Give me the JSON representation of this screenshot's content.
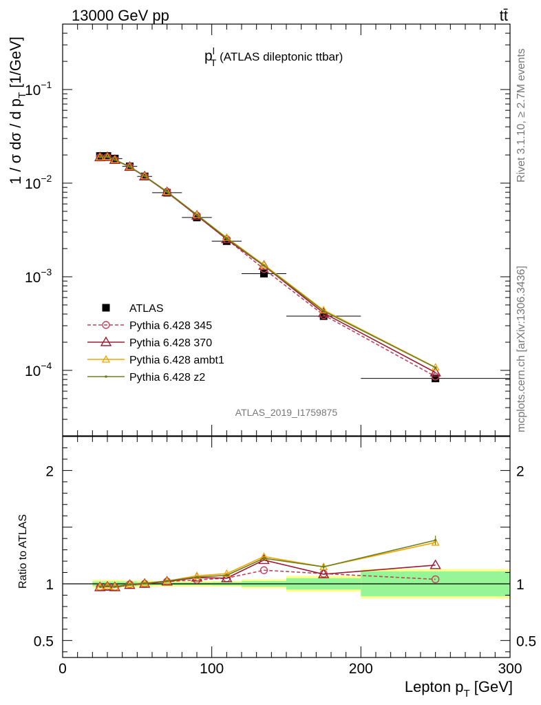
{
  "header": {
    "energy_label": "13000 GeV pp",
    "process_label": "tt̄"
  },
  "side_labels": {
    "rivet": "Rivet 3.1.10, ≥ 2.7M events",
    "mcplots": "mcplots.cern.ch [arXiv:1306.3436]"
  },
  "chart_data": [
    {
      "type": "line",
      "title": "p_T^l (ATLAS dileptonic ttbar)",
      "title_parts": {
        "main": "p",
        "sup": "l",
        "sub": "T",
        "rest": " (ATLAS dileptonic ttbar)"
      },
      "ylabel": "1 / σ  dσ / d p_T [1/GeV]",
      "ylabel_parts": {
        "pre": "1 / σ  dσ / d p",
        "sub": "T",
        "post": " [1/GeV]"
      },
      "analysis_id": "ATLAS_2019_I1759875",
      "yscale": "log",
      "xlim": [
        0,
        300
      ],
      "ylim": [
        2e-05,
        0.5
      ],
      "y_ticks": [
        {
          "value": 0.0001,
          "base": "10",
          "exp": "−4"
        },
        {
          "value": 0.001,
          "base": "10",
          "exp": "−3"
        },
        {
          "value": 0.01,
          "base": "10",
          "exp": "−2"
        },
        {
          "value": 0.1,
          "base": "10",
          "exp": "−1"
        }
      ],
      "legend_position": "lower-left",
      "series": [
        {
          "name": "ATLAS",
          "color": "#000000",
          "marker": "square",
          "x": [
            25,
            30,
            35,
            45,
            55,
            70,
            90,
            110,
            135,
            175,
            250
          ],
          "y": [
            0.0195,
            0.0195,
            0.0183,
            0.0151,
            0.0118,
            0.0079,
            0.0043,
            0.0024,
            0.00108,
            0.00038,
            8.2e-05
          ],
          "x_err": [
            2.5,
            2.5,
            5,
            5,
            5,
            10,
            10,
            10,
            15,
            25,
            50
          ]
        },
        {
          "name": "Pythia 6.428 345",
          "color": "#c4415a",
          "marker": "open-circle",
          "dashed": true,
          "x": [
            25,
            30,
            35,
            45,
            55,
            70,
            90,
            110,
            135,
            175,
            250
          ],
          "y": [
            0.0189,
            0.019,
            0.0177,
            0.015,
            0.0118,
            0.0081,
            0.0045,
            0.00252,
            0.00121,
            0.00039,
            8.6e-05
          ]
        },
        {
          "name": "Pythia 6.428 370",
          "color": "#9b1b30",
          "marker": "open-triangle",
          "x": [
            25,
            30,
            35,
            45,
            55,
            70,
            90,
            110,
            135,
            175,
            250
          ],
          "y": [
            0.0189,
            0.019,
            0.0177,
            0.0149,
            0.0118,
            0.008,
            0.0045,
            0.00252,
            0.00131,
            0.00041,
            9.5e-05
          ]
        },
        {
          "name": "Pythia 6.428 ambt1",
          "color": "#f0a500",
          "marker": "open-triangle-small",
          "x": [
            25,
            30,
            35,
            45,
            55,
            70,
            90,
            110,
            135,
            175,
            250
          ],
          "y": [
            0.019,
            0.0191,
            0.0178,
            0.015,
            0.0119,
            0.0081,
            0.0046,
            0.00262,
            0.00134,
            0.00044,
            0.000108
          ]
        },
        {
          "name": "Pythia 6.428 z2",
          "color": "#6e7d1e",
          "marker": "dot",
          "x": [
            25,
            30,
            35,
            45,
            55,
            70,
            90,
            110,
            135,
            175,
            250
          ],
          "y": [
            0.019,
            0.0191,
            0.0178,
            0.015,
            0.0119,
            0.0081,
            0.0046,
            0.00258,
            0.00132,
            0.00043,
            0.000107
          ]
        }
      ]
    },
    {
      "type": "line",
      "ylabel": "Ratio to ATLAS",
      "xlabel": "Lepton p_T [GeV]",
      "xlabel_parts": {
        "pre": "Lepton p",
        "sub": "T",
        "post": " [GeV]"
      },
      "xlim": [
        0,
        300
      ],
      "ylim": [
        0.35,
        2.3
      ],
      "x_ticks": [
        {
          "value": 0,
          "label": "0"
        },
        {
          "value": 100,
          "label": "100"
        },
        {
          "value": 200,
          "label": "200"
        },
        {
          "value": 300,
          "label": "300"
        }
      ],
      "y_ticks": [
        {
          "value": 0.5,
          "label": "0.5"
        },
        {
          "value": 1,
          "label": "1"
        },
        {
          "value": 2,
          "label": "2"
        }
      ],
      "bands": [
        {
          "x0": 20,
          "x1": 30,
          "stat": 0.02,
          "total": 0.035
        },
        {
          "x0": 30,
          "x1": 40,
          "stat": 0.02,
          "total": 0.035
        },
        {
          "x0": 40,
          "x1": 50,
          "stat": 0.02,
          "total": 0.03
        },
        {
          "x0": 50,
          "x1": 60,
          "stat": 0.015,
          "total": 0.03
        },
        {
          "x0": 60,
          "x1": 80,
          "stat": 0.012,
          "total": 0.025
        },
        {
          "x0": 80,
          "x1": 100,
          "stat": 0.012,
          "total": 0.025
        },
        {
          "x0": 100,
          "x1": 120,
          "stat": 0.015,
          "total": 0.025
        },
        {
          "x0": 120,
          "x1": 150,
          "stat": 0.025,
          "total": 0.04
        },
        {
          "x0": 150,
          "x1": 200,
          "stat": 0.05,
          "total": 0.07
        },
        {
          "x0": 200,
          "x1": 300,
          "stat": 0.11,
          "total": 0.13
        }
      ],
      "series": [
        {
          "name": "Pythia 6.428 345",
          "color": "#c4415a",
          "marker": "open-circle",
          "dashed": true,
          "x": [
            25,
            30,
            35,
            45,
            55,
            70,
            90,
            110,
            135,
            175,
            250
          ],
          "y": [
            0.97,
            0.975,
            0.97,
            0.995,
            1.0,
            1.02,
            1.035,
            1.05,
            1.12,
            1.09,
            1.04
          ]
        },
        {
          "name": "Pythia 6.428 370",
          "color": "#9b1b30",
          "marker": "open-triangle",
          "x": [
            25,
            30,
            35,
            45,
            55,
            70,
            90,
            110,
            135,
            175,
            250
          ],
          "y": [
            0.97,
            0.975,
            0.97,
            0.99,
            1.0,
            1.02,
            1.055,
            1.05,
            1.21,
            1.085,
            1.165
          ]
        },
        {
          "name": "Pythia 6.428 ambt1",
          "color": "#f0a500",
          "marker": "open-triangle-small",
          "x": [
            25,
            30,
            35,
            45,
            55,
            70,
            90,
            110,
            135,
            175,
            250
          ],
          "y": [
            0.975,
            0.98,
            0.975,
            0.995,
            1.005,
            1.025,
            1.07,
            1.09,
            1.24,
            1.15,
            1.365
          ]
        },
        {
          "name": "Pythia 6.428 z2",
          "color": "#6e7d1e",
          "marker": "dot",
          "x": [
            25,
            30,
            35,
            45,
            55,
            70,
            90,
            110,
            135,
            175,
            250
          ],
          "y": [
            0.975,
            0.98,
            0.975,
            0.995,
            1.005,
            1.025,
            1.06,
            1.075,
            1.225,
            1.15,
            1.385
          ],
          "y_err": [
            0,
            0,
            0,
            0,
            0,
            0,
            0.01,
            0.012,
            0.015,
            0.025,
            0.04
          ]
        }
      ]
    }
  ]
}
